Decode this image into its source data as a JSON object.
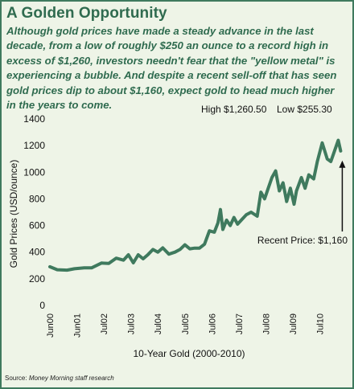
{
  "header": {
    "title": "A Golden Opportunity",
    "description": "Although gold prices have made a steady advance in the last decade, from a low of roughly $250 an ounce to a record high in excess of $1,260, investors needn't fear that the \"yellow metal\" is experiencing a bubble. And despite a recent sell-off that has seen gold prices dip to about $1,160, expect gold to head much higher in the years to come."
  },
  "source": {
    "label": "Source:",
    "publisher": "Money Morning staff research"
  },
  "colors": {
    "frame": "#3f7a5e",
    "background": "#eef4e7",
    "line": "#3f7a5e",
    "text": "#2f6b4f"
  },
  "chart_data": {
    "type": "line",
    "xlabel": "10-Year Gold (2000-2010)",
    "ylabel": "Gold Prices (USD/ounce)",
    "ylim": [
      0,
      1400
    ],
    "yticks": [
      "0",
      "200",
      "400",
      "600",
      "800",
      "1000",
      "1200",
      "1400"
    ],
    "grid": false,
    "xticklabels": [
      "Jun00",
      "Jun01",
      "Jul02",
      "Jul03",
      "Jul04",
      "Jul05",
      "Jul06",
      "Jul07",
      "Jul08",
      "Jul09",
      "Jul10"
    ],
    "annotations": {
      "high": "High $1,260.50",
      "low": "Low $255.30",
      "recent": "Recent Price: $1,160"
    },
    "series": [
      {
        "values": [
          [
            0.0,
            290
          ],
          [
            0.3,
            268
          ],
          [
            0.7,
            265
          ],
          [
            1.0,
            275
          ],
          [
            1.4,
            282
          ],
          [
            1.7,
            282
          ],
          [
            2.1,
            318
          ],
          [
            2.4,
            315
          ],
          [
            2.7,
            355
          ],
          [
            3.0,
            340
          ],
          [
            3.2,
            380
          ],
          [
            3.4,
            320
          ],
          [
            3.6,
            380
          ],
          [
            3.8,
            350
          ],
          [
            4.0,
            382
          ],
          [
            4.2,
            420
          ],
          [
            4.4,
            400
          ],
          [
            4.6,
            432
          ],
          [
            4.85,
            385
          ],
          [
            5.1,
            400
          ],
          [
            5.3,
            420
          ],
          [
            5.5,
            455
          ],
          [
            5.7,
            425
          ],
          [
            5.9,
            430
          ],
          [
            6.1,
            430
          ],
          [
            6.3,
            460
          ],
          [
            6.5,
            560
          ],
          [
            6.7,
            550
          ],
          [
            6.85,
            620
          ],
          [
            6.95,
            720
          ],
          [
            7.05,
            570
          ],
          [
            7.2,
            640
          ],
          [
            7.35,
            600
          ],
          [
            7.5,
            660
          ],
          [
            7.65,
            610
          ],
          [
            7.8,
            640
          ],
          [
            8.0,
            680
          ],
          [
            8.2,
            700
          ],
          [
            8.45,
            670
          ],
          [
            8.6,
            850
          ],
          [
            8.75,
            800
          ],
          [
            8.9,
            880
          ],
          [
            9.05,
            960
          ],
          [
            9.2,
            1010
          ],
          [
            9.35,
            860
          ],
          [
            9.5,
            920
          ],
          [
            9.65,
            780
          ],
          [
            9.8,
            880
          ],
          [
            9.95,
            760
          ],
          [
            10.05,
            860
          ],
          [
            10.25,
            960
          ],
          [
            10.4,
            880
          ],
          [
            10.55,
            980
          ],
          [
            10.75,
            950
          ],
          [
            10.9,
            1080
          ],
          [
            11.1,
            1220
          ],
          [
            11.3,
            1100
          ],
          [
            11.45,
            1080
          ],
          [
            11.6,
            1160
          ],
          [
            11.75,
            1240
          ],
          [
            11.85,
            1160
          ]
        ]
      }
    ]
  }
}
